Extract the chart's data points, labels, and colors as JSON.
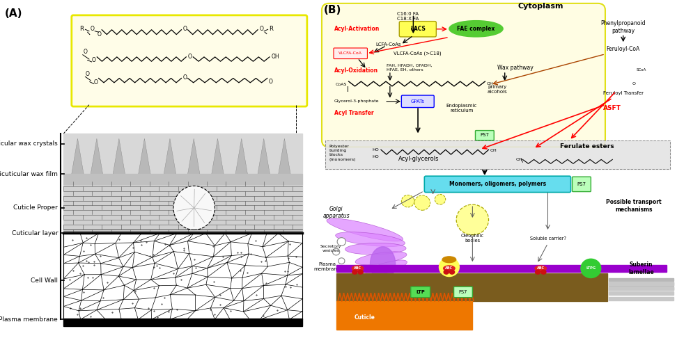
{
  "panel_A_label": "(A)",
  "panel_B_label": "(B)",
  "background_color": "#ffffff",
  "layer_labels": [
    "Epicuticular wax crystals",
    "Epicuticular wax film",
    "Cuticle Proper",
    "Cuticular layer",
    "Cell Wall",
    "Plasma membrane"
  ],
  "cytoplasm_label": "Cytoplasm",
  "c16_label": "C16:0 FA\nC18:X FA",
  "acyl_activation_label": "Acyl-Activation",
  "lacs_label": "LACS",
  "fae_complex_label": "FAE complex",
  "lcfa_coas_label": "LCFA-CoAs",
  "vlcfa_coas_label": "VLCFA-CoAs (>C18)",
  "vlcfa_coa_label": "VLCFA-CoA",
  "acyl_oxidation_label": "Acyl-Oxidation",
  "fah_label": "FAH, HFADH, OFADH,\nHFAE, EH, others",
  "wax_pathway_label": "Wax pathway",
  "primary_alcohols_label": "primary\nalcohols",
  "glycerol_label": "Glycerol-3-phophate",
  "gpats_label": "GPATs",
  "acyl_transfer_label": "Acyl Transfer",
  "endoplasmic_label": "Endoplasmic\nreticulum",
  "phenylpropanoid_label": "Phenylpropanoid\npathway",
  "feruloyl_coa_label": "Feruloyl-CoA",
  "feruloyl_transfer_label": "Feruloyl Transfer",
  "asft_label": "ASFT",
  "polyester_label": "Polyester\nbuilding\nblocks\n(monomers)",
  "acyl_glycerols_label": "Acyl-glycerols",
  "ferulate_esters_label": "Ferulate esters",
  "ps7_label": "PS7",
  "monomers_label": "Monomers, oligomers, polymers",
  "golgi_apparatus_label": "Golgi\napparatus",
  "secretory_label": "Secretory\nvesicles",
  "oleophilic_label": "Oleophilic\nbodies",
  "soluble_label": "Soluble carrier?",
  "possible_transport_label": "Possible transport\nmechanisms",
  "plasma_membrane_label": "Plasma\nmembrane",
  "suberin_label": "Suberin\nlamellae",
  "abc_label": "ABC",
  "ltpg_label": "LTPG",
  "ltp_label": "LTP",
  "cuticle_label": "Cuticle",
  "cell_wall_label": "Cell\nWall"
}
